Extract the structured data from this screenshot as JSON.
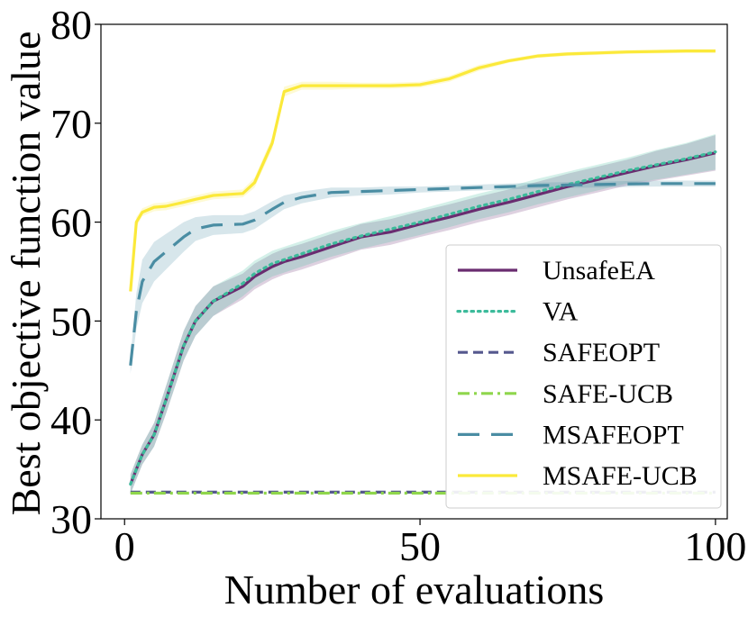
{
  "chart_data": {
    "type": "line",
    "title": "",
    "xlabel": "Number of evaluations",
    "ylabel": "Best objective function value",
    "xlim": [
      -4,
      102
    ],
    "ylim": [
      30,
      80
    ],
    "xticks": [
      0,
      50,
      100
    ],
    "yticks": [
      30,
      40,
      50,
      60,
      70,
      80
    ],
    "grid": false,
    "legend_position": "lower-right",
    "x": [
      1,
      2,
      3,
      5,
      7,
      10,
      12,
      15,
      20,
      22,
      25,
      27,
      30,
      35,
      40,
      45,
      50,
      55,
      60,
      65,
      70,
      75,
      80,
      85,
      90,
      95,
      100
    ],
    "series": [
      {
        "name": "UnsafeEA",
        "color": "#6a2c70",
        "style": "solid",
        "values": [
          33.5,
          35.0,
          36.5,
          38.5,
          42.0,
          47.5,
          50.0,
          52.0,
          53.5,
          54.5,
          55.5,
          56.0,
          56.5,
          57.5,
          58.5,
          59.0,
          59.8,
          60.5,
          61.3,
          62.0,
          62.8,
          63.6,
          64.3,
          65.0,
          65.7,
          66.3,
          67.0
        ],
        "band": [
          1.0,
          1.0,
          1.0,
          1.2,
          1.4,
          1.5,
          1.5,
          1.5,
          1.3,
          1.3,
          1.3,
          1.3,
          1.3,
          1.3,
          1.3,
          1.3,
          1.3,
          1.3,
          1.3,
          1.3,
          1.3,
          1.3,
          1.3,
          1.3,
          1.5,
          1.6,
          1.8
        ]
      },
      {
        "name": "VA",
        "color": "#3cbb9b",
        "style": "dotted",
        "values": [
          33.5,
          35.0,
          36.5,
          38.5,
          42.0,
          47.5,
          50.0,
          52.0,
          53.8,
          54.8,
          55.8,
          56.2,
          56.8,
          57.8,
          58.6,
          59.3,
          60.0,
          60.8,
          61.6,
          62.3,
          63.1,
          63.8,
          64.5,
          65.2,
          65.8,
          66.4,
          67.1
        ],
        "band": [
          1.0,
          1.0,
          1.0,
          1.2,
          1.4,
          1.5,
          1.5,
          1.5,
          1.3,
          1.3,
          1.3,
          1.3,
          1.3,
          1.3,
          1.3,
          1.3,
          1.3,
          1.3,
          1.3,
          1.3,
          1.3,
          1.3,
          1.3,
          1.3,
          1.5,
          1.6,
          1.8
        ]
      },
      {
        "name": "SAFEOPT",
        "color": "#55588e",
        "style": "dashed",
        "values": [
          32.7,
          32.7,
          32.7,
          32.7,
          32.7,
          32.7,
          32.7,
          32.7,
          32.7,
          32.7,
          32.7,
          32.7,
          32.7,
          32.7,
          32.7,
          32.7,
          32.7,
          32.7,
          32.7,
          32.7,
          32.7,
          32.7,
          32.7,
          32.7,
          32.7,
          32.7,
          32.7
        ]
      },
      {
        "name": "SAFE-UCB",
        "color": "#8fd64c",
        "style": "dashdot",
        "values": [
          32.6,
          32.6,
          32.6,
          32.6,
          32.6,
          32.6,
          32.6,
          32.6,
          32.6,
          32.6,
          32.6,
          32.6,
          32.6,
          32.6,
          32.6,
          32.6,
          32.6,
          32.6,
          32.6,
          32.6,
          32.6,
          32.6,
          32.6,
          32.6,
          32.6,
          32.6,
          32.6
        ]
      },
      {
        "name": "MSAFEOPT",
        "color": "#4a8da3",
        "style": "longdash",
        "values": [
          45.5,
          51.0,
          54.0,
          56.0,
          57.0,
          58.5,
          59.3,
          59.7,
          59.8,
          60.2,
          61.3,
          62.0,
          62.5,
          63.0,
          63.1,
          63.2,
          63.3,
          63.4,
          63.5,
          63.6,
          63.7,
          63.75,
          63.8,
          63.85,
          63.9,
          63.9,
          63.9
        ],
        "band": [
          0.8,
          1.8,
          2.2,
          2.0,
          1.8,
          1.5,
          1.2,
          1.0,
          0.9,
          0.9,
          0.8,
          0.7,
          0.6,
          0.5,
          0.4,
          0.4,
          0.3,
          0.3,
          0.3,
          0.3,
          0.3,
          0.3,
          0.3,
          0.3,
          0.3,
          0.3,
          0.3
        ]
      },
      {
        "name": "MSAFE-UCB",
        "color": "#fbe93a",
        "style": "solid",
        "values": [
          53.0,
          60.0,
          61.0,
          61.5,
          61.6,
          62.0,
          62.3,
          62.7,
          62.9,
          64.0,
          68.0,
          73.2,
          73.8,
          73.8,
          73.8,
          73.8,
          73.9,
          74.5,
          75.6,
          76.3,
          76.8,
          77.0,
          77.1,
          77.2,
          77.25,
          77.3,
          77.3
        ],
        "band": [
          0.5,
          0.5,
          0.4,
          0.4,
          0.4,
          0.4,
          0.4,
          0.4,
          0.4,
          0.5,
          0.6,
          0.5,
          0.4,
          0.4,
          0.3,
          0.3,
          0.3,
          0.3,
          0.3,
          0.2,
          0.2,
          0.2,
          0.2,
          0.2,
          0.2,
          0.2,
          0.2
        ]
      }
    ]
  }
}
